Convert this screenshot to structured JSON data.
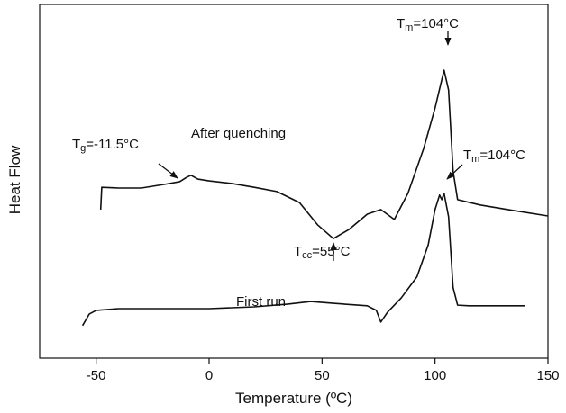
{
  "chart_data": {
    "type": "line",
    "x_label": "Temperature (ºC)",
    "y_label": "Heat Flow",
    "xlim": [
      -75,
      150
    ],
    "ylim": [
      0,
      100
    ],
    "xticks": [
      -50,
      0,
      50,
      100,
      150
    ],
    "series": [
      {
        "name": "After quenching",
        "color": "#111111",
        "x": [
          -48,
          -47.5,
          -40,
          -30,
          -20,
          -13,
          -10,
          -8,
          -5,
          0,
          10,
          20,
          30,
          40,
          48,
          55,
          62,
          70,
          76,
          82,
          88,
          95,
          100,
          104,
          106,
          108,
          110,
          120,
          135,
          150
        ],
        "values": [
          42.0,
          48.3,
          48.1,
          48.1,
          49.1,
          49.9,
          51.1,
          51.7,
          50.6,
          50.1,
          49.4,
          48.3,
          47.1,
          44.0,
          37.7,
          33.8,
          36.4,
          40.7,
          42.0,
          39.2,
          46.6,
          59.3,
          70.7,
          81.4,
          75.8,
          52.9,
          44.8,
          43.3,
          41.7,
          40.2
        ]
      },
      {
        "name": "First run",
        "color": "#111111",
        "x": [
          -56,
          -53,
          -50,
          -40,
          -20,
          0,
          20,
          35,
          45,
          55,
          70,
          74,
          76,
          79,
          85,
          92,
          97,
          100,
          102,
          103,
          104,
          106,
          108,
          110,
          115,
          140
        ],
        "values": [
          9.2,
          12.5,
          13.5,
          14.0,
          14.0,
          14.0,
          14.5,
          15.3,
          16.0,
          15.5,
          14.8,
          13.5,
          10.2,
          13.0,
          17,
          23,
          32,
          42,
          46.1,
          44.8,
          46.6,
          40,
          20,
          15,
          14.8,
          14.8
        ]
      }
    ],
    "annotations": [
      {
        "base": "T",
        "sub": "g",
        "rest": "=-11.5°C"
      },
      {
        "base": "T",
        "sub": "m",
        "rest": "=104°C"
      },
      {
        "base": "T",
        "sub": "m",
        "rest": "=104°C"
      },
      {
        "base": "T",
        "sub": "cc",
        "rest": "=55°C"
      }
    ]
  }
}
